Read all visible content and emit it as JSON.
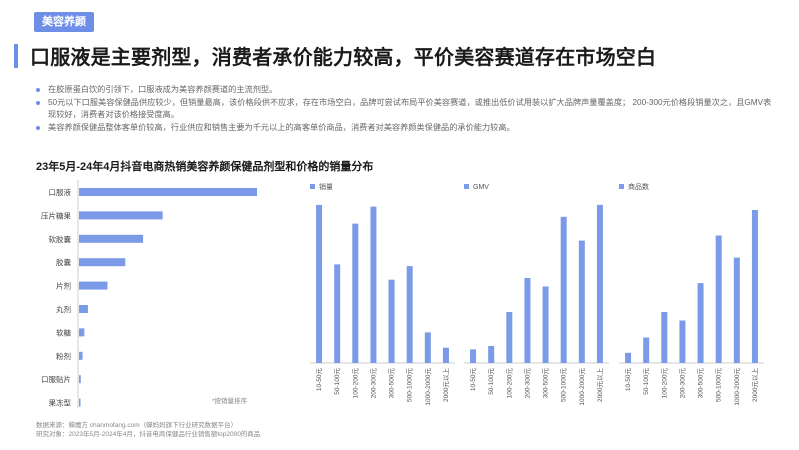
{
  "tag": "美容养颜",
  "title": "口服液是主要剂型，消费者承价能力较高，平价美容赛道存在市场空白",
  "bullets": [
    "在胶原蛋白饮的引领下，口服液成为美容养颜赛道的主流剂型。",
    "50元以下口服美容保健品供应较少，但销量最高，该价格段供不应求，存在市场空白，品牌可尝试布局平价美容赛道，或推出低价试用装以扩大品牌声量覆盖度； 200-300元价格段销量次之，且GMV表现较好，消费者对该价格接受度高。",
    "美容养颜保健品整体客单价较高，行业供应和销售主要为千元以上的高客单价商品，消费者对美容养颜类保健品的承价能力较高。"
  ],
  "chart_title": "23年5月-24年4月抖音电商热销美容养颜保健品剂型和价格的销量分布",
  "footer": {
    "line1": "数据来源：蝉魔方 chanmofang.com（蝉妈妈旗下行业研究数据平台）",
    "line2": "研究对象：2023年5月-2024年4月，抖音电商保健品行业销售额top2000的商品"
  },
  "colors": {
    "accent": "#6e8ee8",
    "bar": "#7b9ae8"
  },
  "chart_data": [
    {
      "type": "bar",
      "orientation": "horizontal",
      "categories": [
        "口服液",
        "压片糖果",
        "软胶囊",
        "胶囊",
        "片剂",
        "丸剂",
        "软糖",
        "粉剂",
        "口服贴片",
        "果冻型"
      ],
      "values": [
        100,
        47,
        36,
        26,
        16,
        5,
        3,
        2,
        1,
        0.5
      ],
      "note": "*按销量排序",
      "grid": false
    },
    {
      "type": "bar",
      "series": [
        {
          "name": "销量",
          "values": [
            93,
            58,
            82,
            92,
            49,
            57,
            18,
            9
          ]
        },
        {
          "name": "GMV",
          "values": [
            8,
            10,
            30,
            50,
            45,
            86,
            72,
            93
          ]
        },
        {
          "name": "商品数",
          "values": [
            6,
            15,
            30,
            25,
            47,
            75,
            62,
            90
          ]
        }
      ],
      "categories": [
        "10-50元",
        "50-100元",
        "100-200元",
        "200-300元",
        "300-500元",
        "500-1000元",
        "1000-2000元",
        "2000元以上"
      ],
      "ylim": [
        0,
        100
      ],
      "grid": false
    }
  ]
}
